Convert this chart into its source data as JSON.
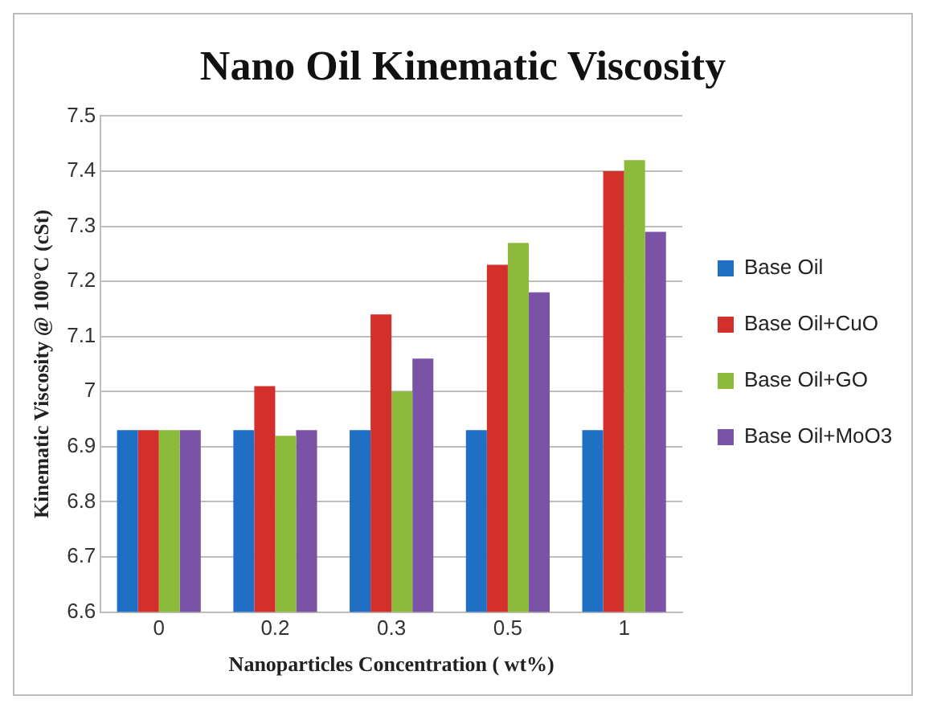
{
  "chart_data": {
    "type": "bar",
    "title": "Nano Oil Kinematic Viscosity",
    "xlabel": "Nanoparticles Concentration ( wt%)",
    "ylabel": "Kinematic Viscosity @ 100°C (cSt)",
    "categories": [
      "0",
      "0.2",
      "0.3",
      "0.5",
      "1"
    ],
    "series": [
      {
        "name": "Base Oil",
        "color": "#1f6fc5",
        "values": [
          6.93,
          6.93,
          6.93,
          6.93,
          6.93
        ]
      },
      {
        "name": "Base Oil+CuO",
        "color": "#d3302c",
        "values": [
          6.93,
          7.01,
          7.14,
          7.23,
          7.4
        ]
      },
      {
        "name": "Base Oil+GO",
        "color": "#8cba3a",
        "values": [
          6.93,
          6.92,
          7.0,
          7.27,
          7.42
        ]
      },
      {
        "name": "Base Oil+MoO3",
        "color": "#7a52a6",
        "values": [
          6.93,
          6.93,
          7.06,
          7.18,
          7.29
        ]
      }
    ],
    "ylim": [
      6.6,
      7.5
    ],
    "yticks": [
      6.6,
      6.7,
      6.8,
      6.9,
      7,
      7.1,
      7.2,
      7.3,
      7.4,
      7.5
    ],
    "grid": "y",
    "legend": "right"
  }
}
